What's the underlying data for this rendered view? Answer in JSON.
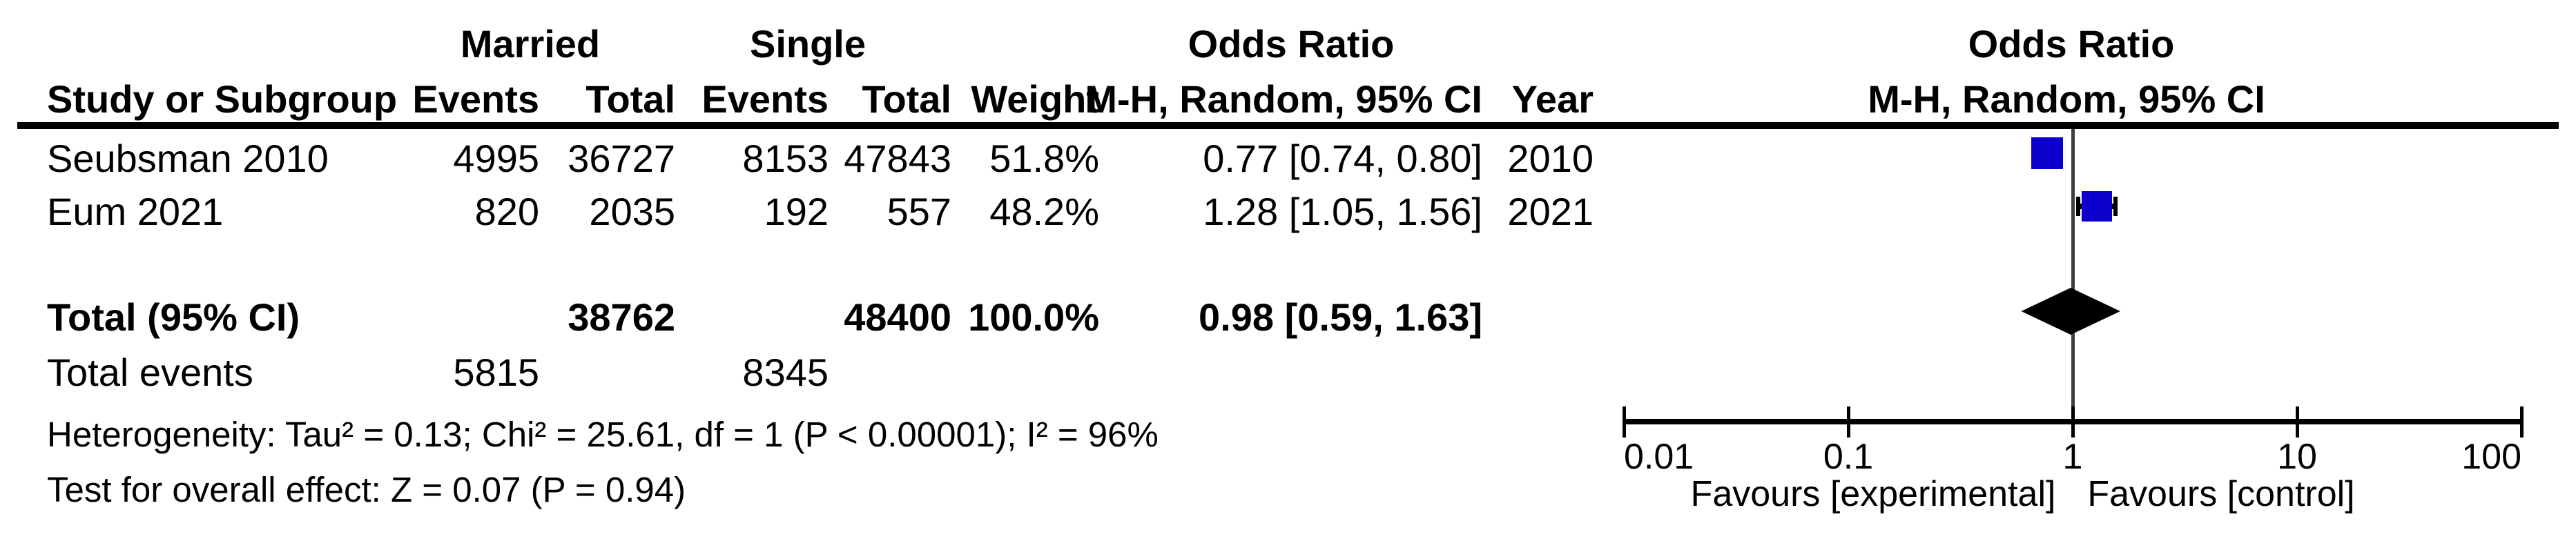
{
  "table": {
    "group_headers": {
      "married": "Married",
      "single": "Single",
      "odds_ratio_left": "Odds Ratio",
      "odds_ratio_right": "Odds Ratio"
    },
    "column_headers": {
      "study": "Study or Subgroup",
      "events_married": "Events",
      "total_married": "Total",
      "events_single": "Events",
      "total_single": "Total",
      "weight": "Weight",
      "or_ci": "M-H, Random, 95% CI",
      "year": "Year",
      "or_ci_plot": "M-H, Random, 95% CI"
    },
    "studies": [
      {
        "name": "Seubsman 2010",
        "married_events": "4995",
        "married_total": "36727",
        "single_events": "8153",
        "single_total": "47843",
        "weight": "51.8%",
        "or_ci": "0.77 [0.74, 0.80]",
        "year": "2010"
      },
      {
        "name": "Eum 2021",
        "married_events": "820",
        "married_total": "2035",
        "single_events": "192",
        "single_total": "557",
        "weight": "48.2%",
        "or_ci": "1.28 [1.05, 1.56]",
        "year": "2021"
      }
    ],
    "total_row": {
      "label": "Total (95% CI)",
      "married_total": "38762",
      "single_total": "48400",
      "weight": "100.0%",
      "or_ci": "0.98 [0.59, 1.63]"
    },
    "total_events_row": {
      "label": "Total events",
      "married_events": "5815",
      "single_events": "8345"
    },
    "heterogeneity_line": "Heterogeneity: Tau² = 0.13; Chi² = 25.61, df = 1 (P < 0.00001); I² = 96%",
    "overall_effect_line": "Test for overall effect: Z = 0.07 (P = 0.94)"
  },
  "chart_data": {
    "type": "forest",
    "effect_measure": "Odds Ratio",
    "method": "M-H, Random, 95% CI",
    "x_scale": "log10",
    "x_ticks": [
      0.01,
      0.1,
      1,
      10,
      100
    ],
    "x_tick_labels": [
      "0.01",
      "0.1",
      "1",
      "10",
      "100"
    ],
    "null_line_value": 1,
    "favours_left": "Favours [experimental]",
    "favours_right": "Favours [control]",
    "marker_color": "#0d00cc",
    "ci_color": "#000000",
    "diamond_color": "#000000",
    "null_line_color": "#404040",
    "studies": [
      {
        "name": "Seubsman 2010",
        "or": 0.77,
        "ci_low": 0.74,
        "ci_high": 0.8,
        "weight_pct": 51.8,
        "year": 2010
      },
      {
        "name": "Eum 2021",
        "or": 1.28,
        "ci_low": 1.05,
        "ci_high": 1.56,
        "weight_pct": 48.2,
        "year": 2021
      }
    ],
    "total": {
      "or": 0.98,
      "ci_low": 0.59,
      "ci_high": 1.63,
      "weight_pct": 100.0
    }
  }
}
